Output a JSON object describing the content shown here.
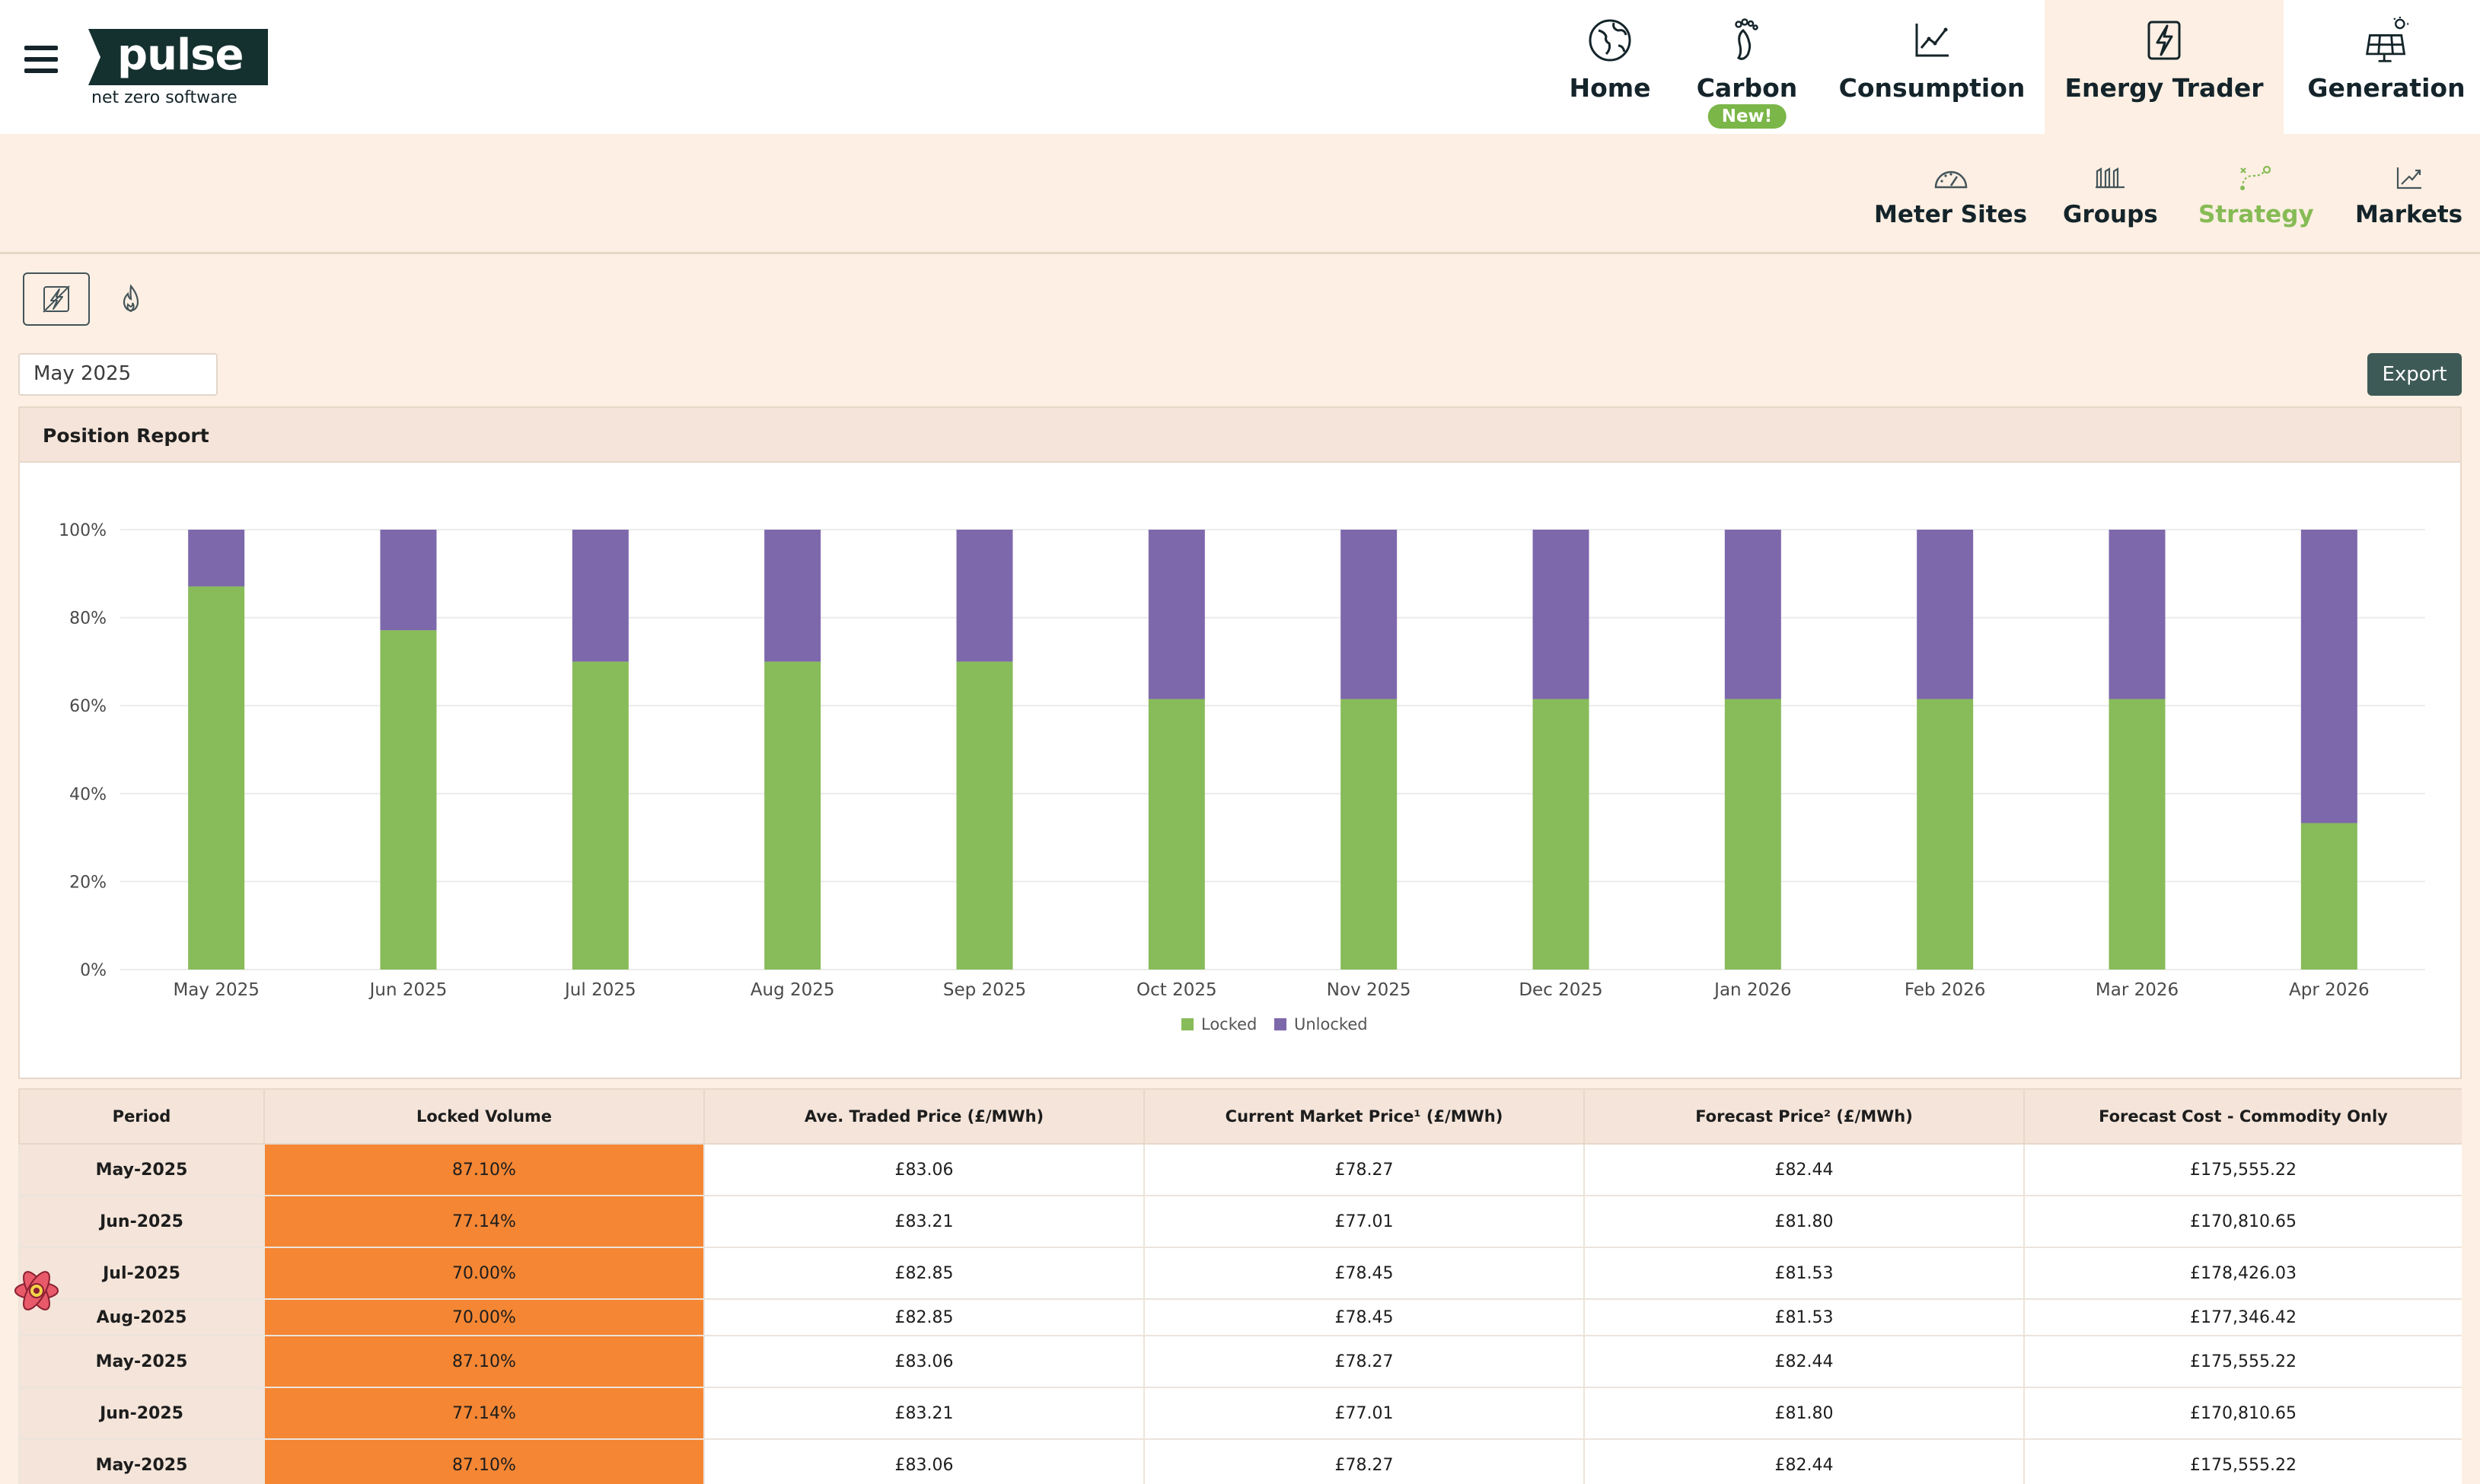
{
  "brand": {
    "name": "pulse",
    "tagline": "net zero software"
  },
  "nav": [
    {
      "label": "Home",
      "icon": "globe-icon",
      "active": false
    },
    {
      "label": "Carbon",
      "icon": "footprint-icon",
      "active": false,
      "badge": "New!"
    },
    {
      "label": "Consumption",
      "icon": "line-chart-icon",
      "active": false
    },
    {
      "label": "Energy Trader",
      "icon": "lightning-icon",
      "active": true
    },
    {
      "label": "Generation",
      "icon": "solar-panel-icon",
      "active": false
    }
  ],
  "subnav": [
    {
      "label": "Meter Sites",
      "icon": "gauge-icon",
      "active": false
    },
    {
      "label": "Groups",
      "icon": "groups-icon",
      "active": false
    },
    {
      "label": "Strategy",
      "icon": "strategy-icon",
      "active": true
    },
    {
      "label": "Markets",
      "icon": "trend-icon",
      "active": false
    }
  ],
  "filters": {
    "month": "May 2025",
    "export_label": "Export"
  },
  "report": {
    "title": "Position Report"
  },
  "colors": {
    "locked": "#88bb5a",
    "unlocked": "#7e68ac",
    "locked_cell": "#f48634",
    "accent": "#86bb55",
    "header_bg": "#f4e4d9"
  },
  "chart_data": {
    "type": "bar",
    "stacked": true,
    "categories": [
      "May 2025",
      "Jun 2025",
      "Jul 2025",
      "Aug 2025",
      "Sep 2025",
      "Oct 2025",
      "Nov 2025",
      "Dec 2025",
      "Jan 2026",
      "Feb 2026",
      "Mar 2026",
      "Apr 2026"
    ],
    "series": [
      {
        "name": "Locked",
        "values": [
          87.1,
          77.14,
          70,
          70,
          70,
          61.5,
          61.5,
          61.5,
          61.5,
          61.5,
          61.5,
          33.3
        ]
      },
      {
        "name": "Unlocked",
        "values": [
          12.9,
          22.86,
          30,
          30,
          30,
          38.5,
          38.5,
          38.5,
          38.5,
          38.5,
          38.5,
          66.7
        ]
      }
    ],
    "y_ticks": [
      "0%",
      "20%",
      "40%",
      "60%",
      "80%",
      "100%"
    ],
    "ylim": [
      0,
      100
    ],
    "legend_position": "bottom",
    "grid": true
  },
  "table": {
    "headers": [
      "Period",
      "Locked Volume",
      "Ave. Traded Price (£/MWh)",
      "Current Market Price¹ (£/MWh)",
      "Forecast Price² (£/MWh)",
      "Forecast Cost - Commodity Only"
    ],
    "rows": [
      [
        "May-2025",
        "87.10%",
        "£83.06",
        "£78.27",
        "£82.44",
        "£175,555.22"
      ],
      [
        "Jun-2025",
        "77.14%",
        "£83.21",
        "£77.01",
        "£81.80",
        "£170,810.65"
      ],
      [
        "Jul-2025",
        "70.00%",
        "£82.85",
        "£78.45",
        "£81.53",
        "£178,426.03"
      ],
      [
        "Aug-2025",
        "70.00%",
        "£82.85",
        "£78.45",
        "£81.53",
        "£177,346.42"
      ],
      [
        "May-2025",
        "87.10%",
        "£83.06",
        "£78.27",
        "£82.44",
        "£175,555.22"
      ],
      [
        "Jun-2025",
        "77.14%",
        "£83.21",
        "£77.01",
        "£81.80",
        "£170,810.65"
      ],
      [
        "May-2025",
        "87.10%",
        "£83.06",
        "£78.27",
        "£82.44",
        "£175,555.22"
      ]
    ]
  }
}
